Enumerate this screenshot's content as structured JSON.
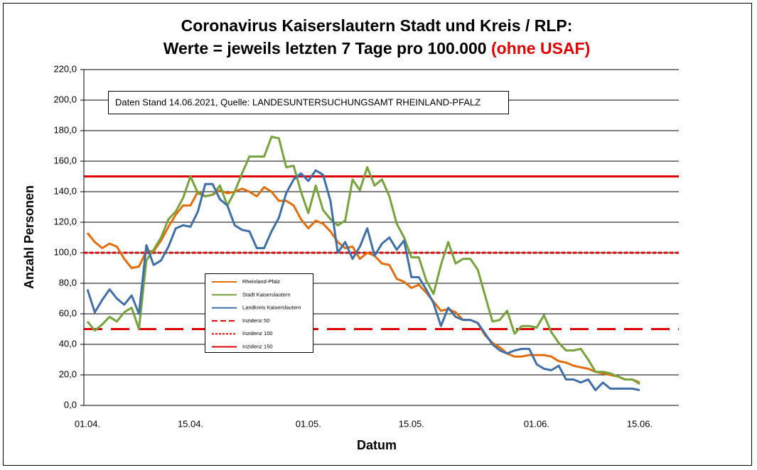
{
  "chart_data": {
    "type": "line",
    "title": "Coronavirus Kaiserslautern Stadt und Kreis / RLP:",
    "subtitle": "Werte = jeweils letzten 7 Tage pro 100.000",
    "subtitle_highlight": "(ohne USAF)",
    "annotation": "Daten Stand 14.06.2021, Quelle: LANDESUNTERSUCHUNGSAMT RHEINLAND-PFALZ",
    "x_label": "Datum",
    "y_label": "Anzahl Personen",
    "categories": [
      "01.04.",
      null,
      null,
      null,
      null,
      null,
      null,
      null,
      null,
      null,
      null,
      null,
      null,
      null,
      "15.04.",
      null,
      null,
      null,
      null,
      null,
      null,
      null,
      null,
      null,
      null,
      null,
      null,
      null,
      null,
      null,
      "01.05.",
      null,
      null,
      null,
      null,
      null,
      null,
      null,
      null,
      null,
      null,
      null,
      null,
      null,
      "15.05.",
      null,
      null,
      null,
      null,
      null,
      null,
      null,
      null,
      null,
      null,
      null,
      null,
      null,
      null,
      null,
      null,
      "01.06.",
      null,
      null,
      null,
      null,
      null,
      null,
      null,
      null,
      null,
      null,
      null,
      null,
      null,
      "15.06."
    ],
    "series": [
      {
        "name": "Rheinland-Pfalz",
        "color": "#e46c0a",
        "values": [
          113,
          107,
          103,
          106,
          104,
          96,
          90,
          91,
          101,
          101,
          108,
          117,
          125,
          131,
          131,
          140,
          137,
          138,
          141,
          139,
          140,
          142,
          140,
          137,
          143,
          140,
          134,
          134,
          131,
          122,
          116,
          121,
          119,
          114,
          107,
          103,
          104,
          96,
          100,
          98,
          93,
          92,
          83,
          81,
          77,
          79,
          74,
          68,
          62,
          63,
          61,
          56,
          56,
          54,
          46,
          41,
          38,
          34,
          32,
          32,
          33,
          33,
          33,
          32,
          29,
          28,
          26,
          25,
          24,
          22,
          21,
          20,
          19,
          17,
          17,
          15
        ]
      },
      {
        "name": "Stadt Kaiserslautern",
        "color": "#77a33c",
        "values": [
          55,
          49,
          53,
          58,
          55,
          61,
          64,
          50,
          95,
          102,
          110,
          122,
          127,
          136,
          150,
          139,
          137,
          138,
          144,
          131,
          140,
          152,
          163,
          163,
          163,
          176,
          175,
          156,
          157,
          140,
          126,
          144,
          128,
          122,
          118,
          121,
          148,
          141,
          156,
          144,
          148,
          137,
          119,
          110,
          97,
          97,
          82,
          73,
          92,
          107,
          93,
          96,
          96,
          89,
          72,
          55,
          56,
          62,
          47,
          52,
          52,
          51,
          59,
          48,
          41,
          36,
          36,
          37,
          30,
          22,
          22,
          21,
          19,
          17,
          17,
          14
        ]
      },
      {
        "name": "Landkreis Kaiserslautern",
        "color": "#3f6fa8",
        "values": [
          76,
          61,
          69,
          76,
          70,
          66,
          72,
          60,
          105,
          92,
          95,
          104,
          116,
          118,
          117,
          127,
          145,
          145,
          135,
          131,
          118,
          115,
          114,
          103,
          103,
          114,
          123,
          139,
          148,
          152,
          147,
          154,
          151,
          134,
          100,
          107,
          96,
          104,
          116,
          98,
          106,
          110,
          102,
          108,
          84,
          84,
          76,
          67,
          52,
          64,
          58,
          56,
          56,
          54,
          47,
          40,
          36,
          34,
          36,
          37,
          37,
          27,
          24,
          23,
          26,
          17,
          17,
          15,
          17,
          10,
          15,
          11,
          11,
          11,
          11,
          10
        ]
      }
    ],
    "reference_lines": [
      {
        "name": "Inzidenz 50",
        "value": 50,
        "color": "#e00000",
        "style": "dashed"
      },
      {
        "name": "Inzidenz 100",
        "value": 100,
        "color": "#e00000",
        "style": "dotted"
      },
      {
        "name": "Inzidenz 150",
        "value": 150,
        "color": "#e00000",
        "style": "solid"
      }
    ],
    "ylim": [
      0,
      220
    ],
    "yticks": [
      {
        "value": 0,
        "label": "0,0"
      },
      {
        "value": 20,
        "label": "20,0"
      },
      {
        "value": 40,
        "label": "40,0"
      },
      {
        "value": 60,
        "label": "60,0"
      },
      {
        "value": 80,
        "label": "80,0"
      },
      {
        "value": 100,
        "label": "100,0"
      },
      {
        "value": 120,
        "label": "120,0"
      },
      {
        "value": 140,
        "label": "140,0"
      },
      {
        "value": 160,
        "label": "160,0"
      },
      {
        "value": 180,
        "label": "180,0"
      },
      {
        "value": 200,
        "label": "200,0"
      },
      {
        "value": 220,
        "label": "220,0"
      }
    ],
    "grid": true
  }
}
